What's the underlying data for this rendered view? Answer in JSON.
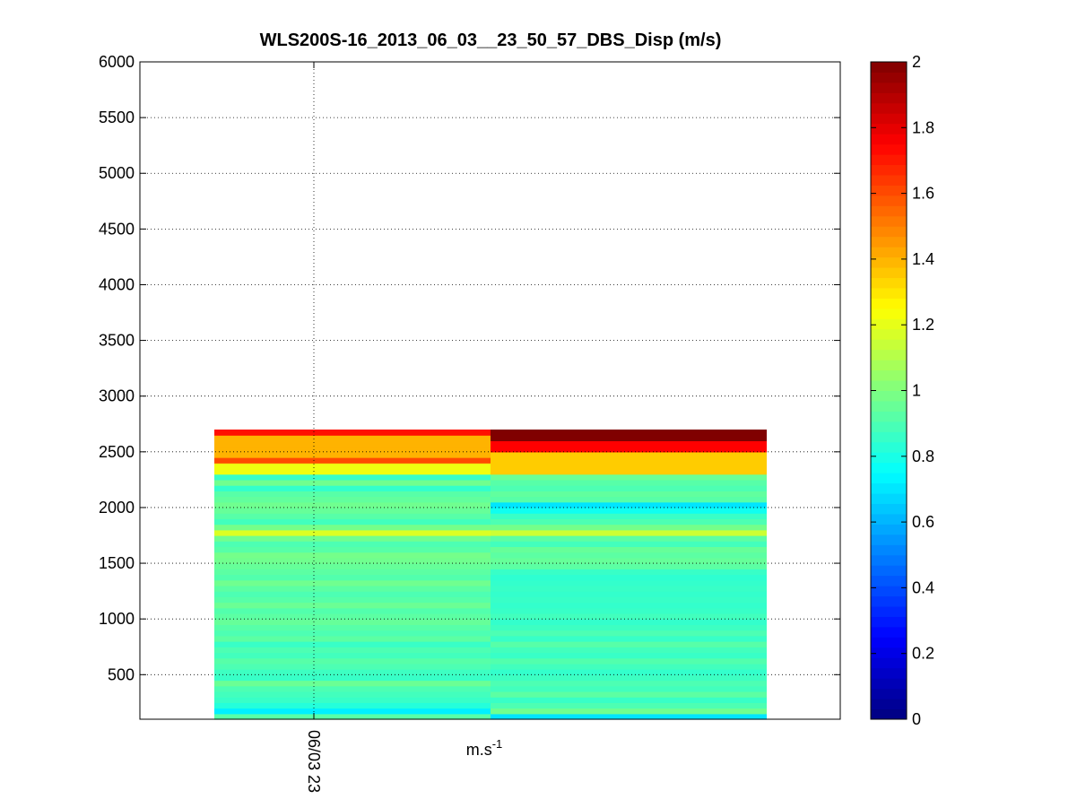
{
  "chart_data": {
    "type": "heatmap",
    "title": "WLS200S-16_2013_06_03__23_50_57_DBS_Disp (m/s)",
    "xlabel": "m.s",
    "xlabel_superscript": "-1",
    "ylabel": "",
    "ylim": [
      100,
      6000
    ],
    "yticks": [
      500,
      1000,
      1500,
      2000,
      2500,
      3000,
      3500,
      4000,
      4500,
      5000,
      5500,
      6000
    ],
    "xticks": [
      "06/03 23"
    ],
    "grid": true,
    "colormap": "jet",
    "colorbar": {
      "range": [
        0,
        2
      ],
      "ticks": [
        "0",
        "0.2",
        "0.4",
        "0.6",
        "0.8",
        "1",
        "1.2",
        "1.4",
        "1.6",
        "1.8",
        "2"
      ]
    },
    "altitude_step": 50,
    "columns": [
      {
        "rows": [
          {
            "alt": 100,
            "value": 0.92
          },
          {
            "alt": 150,
            "value": 0.72
          },
          {
            "alt": 200,
            "value": 0.82
          },
          {
            "alt": 250,
            "value": 0.86
          },
          {
            "alt": 300,
            "value": 0.88
          },
          {
            "alt": 350,
            "value": 0.9
          },
          {
            "alt": 400,
            "value": 0.96
          },
          {
            "alt": 450,
            "value": 0.86
          },
          {
            "alt": 500,
            "value": 0.87
          },
          {
            "alt": 550,
            "value": 0.9
          },
          {
            "alt": 600,
            "value": 0.92
          },
          {
            "alt": 650,
            "value": 0.88
          },
          {
            "alt": 700,
            "value": 0.9
          },
          {
            "alt": 750,
            "value": 0.86
          },
          {
            "alt": 800,
            "value": 0.93
          },
          {
            "alt": 850,
            "value": 0.9
          },
          {
            "alt": 900,
            "value": 0.92
          },
          {
            "alt": 950,
            "value": 0.95
          },
          {
            "alt": 1000,
            "value": 0.93
          },
          {
            "alt": 1050,
            "value": 0.91
          },
          {
            "alt": 1100,
            "value": 0.96
          },
          {
            "alt": 1150,
            "value": 0.92
          },
          {
            "alt": 1200,
            "value": 0.9
          },
          {
            "alt": 1250,
            "value": 0.93
          },
          {
            "alt": 1300,
            "value": 0.97
          },
          {
            "alt": 1350,
            "value": 0.91
          },
          {
            "alt": 1400,
            "value": 0.93
          },
          {
            "alt": 1450,
            "value": 0.95
          },
          {
            "alt": 1500,
            "value": 0.97
          },
          {
            "alt": 1550,
            "value": 0.98
          },
          {
            "alt": 1600,
            "value": 0.92
          },
          {
            "alt": 1650,
            "value": 0.9
          },
          {
            "alt": 1700,
            "value": 0.97
          },
          {
            "alt": 1750,
            "value": 1.18
          },
          {
            "alt": 1800,
            "value": 0.98
          },
          {
            "alt": 1850,
            "value": 0.88
          },
          {
            "alt": 1900,
            "value": 0.92
          },
          {
            "alt": 1950,
            "value": 0.95
          },
          {
            "alt": 2000,
            "value": 0.97
          },
          {
            "alt": 2050,
            "value": 0.94
          },
          {
            "alt": 2100,
            "value": 0.92
          },
          {
            "alt": 2150,
            "value": 0.85
          },
          {
            "alt": 2200,
            "value": 0.97
          },
          {
            "alt": 2250,
            "value": 0.86
          },
          {
            "alt": 2300,
            "value": 1.22
          },
          {
            "alt": 2350,
            "value": 1.22
          },
          {
            "alt": 2400,
            "value": 1.6
          },
          {
            "alt": 2450,
            "value": 1.4
          },
          {
            "alt": 2500,
            "value": 1.4
          },
          {
            "alt": 2550,
            "value": 1.4
          },
          {
            "alt": 2600,
            "value": 1.4
          },
          {
            "alt": 2650,
            "value": 1.72
          }
        ]
      },
      {
        "rows": [
          {
            "alt": 100,
            "value": 0.7
          },
          {
            "alt": 150,
            "value": 0.97
          },
          {
            "alt": 200,
            "value": 0.9
          },
          {
            "alt": 250,
            "value": 0.86
          },
          {
            "alt": 300,
            "value": 0.93
          },
          {
            "alt": 350,
            "value": 0.88
          },
          {
            "alt": 400,
            "value": 0.9
          },
          {
            "alt": 450,
            "value": 0.87
          },
          {
            "alt": 500,
            "value": 0.85
          },
          {
            "alt": 550,
            "value": 0.88
          },
          {
            "alt": 600,
            "value": 0.91
          },
          {
            "alt": 650,
            "value": 0.86
          },
          {
            "alt": 700,
            "value": 0.88
          },
          {
            "alt": 750,
            "value": 0.92
          },
          {
            "alt": 800,
            "value": 0.86
          },
          {
            "alt": 850,
            "value": 0.9
          },
          {
            "alt": 900,
            "value": 0.87
          },
          {
            "alt": 950,
            "value": 0.85
          },
          {
            "alt": 1000,
            "value": 0.88
          },
          {
            "alt": 1050,
            "value": 0.86
          },
          {
            "alt": 1100,
            "value": 0.85
          },
          {
            "alt": 1150,
            "value": 0.86
          },
          {
            "alt": 1200,
            "value": 0.85
          },
          {
            "alt": 1250,
            "value": 0.86
          },
          {
            "alt": 1300,
            "value": 0.85
          },
          {
            "alt": 1350,
            "value": 0.84
          },
          {
            "alt": 1400,
            "value": 0.86
          },
          {
            "alt": 1450,
            "value": 0.93
          },
          {
            "alt": 1500,
            "value": 0.95
          },
          {
            "alt": 1550,
            "value": 0.93
          },
          {
            "alt": 1600,
            "value": 0.95
          },
          {
            "alt": 1650,
            "value": 0.88
          },
          {
            "alt": 1700,
            "value": 0.93
          },
          {
            "alt": 1750,
            "value": 1.15
          },
          {
            "alt": 1800,
            "value": 0.98
          },
          {
            "alt": 1850,
            "value": 0.9
          },
          {
            "alt": 1900,
            "value": 0.86
          },
          {
            "alt": 1950,
            "value": 0.78
          },
          {
            "alt": 2000,
            "value": 0.7
          },
          {
            "alt": 2050,
            "value": 0.92
          },
          {
            "alt": 2100,
            "value": 0.94
          },
          {
            "alt": 2150,
            "value": 0.9
          },
          {
            "alt": 2200,
            "value": 0.92
          },
          {
            "alt": 2250,
            "value": 0.96
          },
          {
            "alt": 2300,
            "value": 1.35
          },
          {
            "alt": 2350,
            "value": 1.35
          },
          {
            "alt": 2400,
            "value": 1.35
          },
          {
            "alt": 2450,
            "value": 1.35
          },
          {
            "alt": 2500,
            "value": 1.75
          },
          {
            "alt": 2550,
            "value": 1.75
          },
          {
            "alt": 2600,
            "value": 2.0
          },
          {
            "alt": 2650,
            "value": 2.0
          }
        ]
      }
    ]
  }
}
